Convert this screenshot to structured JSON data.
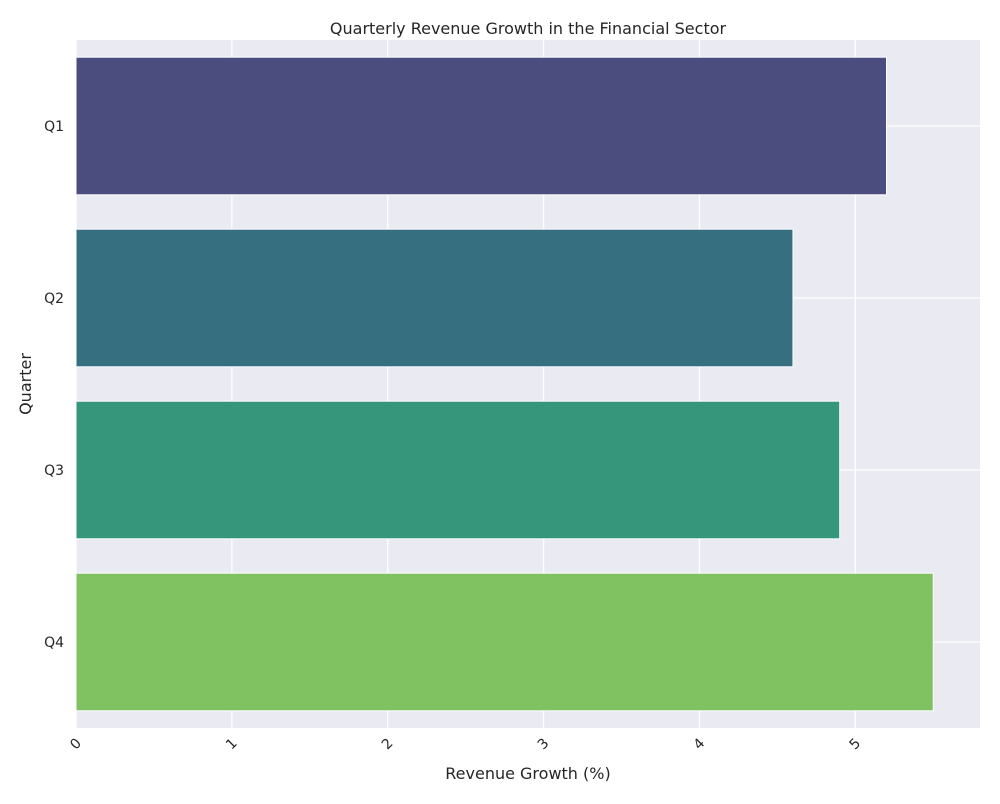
{
  "chart_data": {
    "type": "bar",
    "orientation": "horizontal",
    "title": "Quarterly Revenue Growth in the Financial Sector",
    "xlabel": "Revenue Growth (%)",
    "ylabel": "Quarter",
    "categories": [
      "Q1",
      "Q2",
      "Q3",
      "Q4"
    ],
    "values": [
      5.2,
      4.6,
      4.9,
      5.5
    ],
    "xlim": [
      0,
      5.8
    ],
    "xticks": [
      "0",
      "1",
      "2",
      "3",
      "4",
      "5"
    ],
    "grid": true,
    "colors": [
      "#4a4d7e",
      "#366f80",
      "#35967c",
      "#80c262"
    ],
    "background": "#eaeaf2",
    "grid_color": "#ffffff"
  }
}
